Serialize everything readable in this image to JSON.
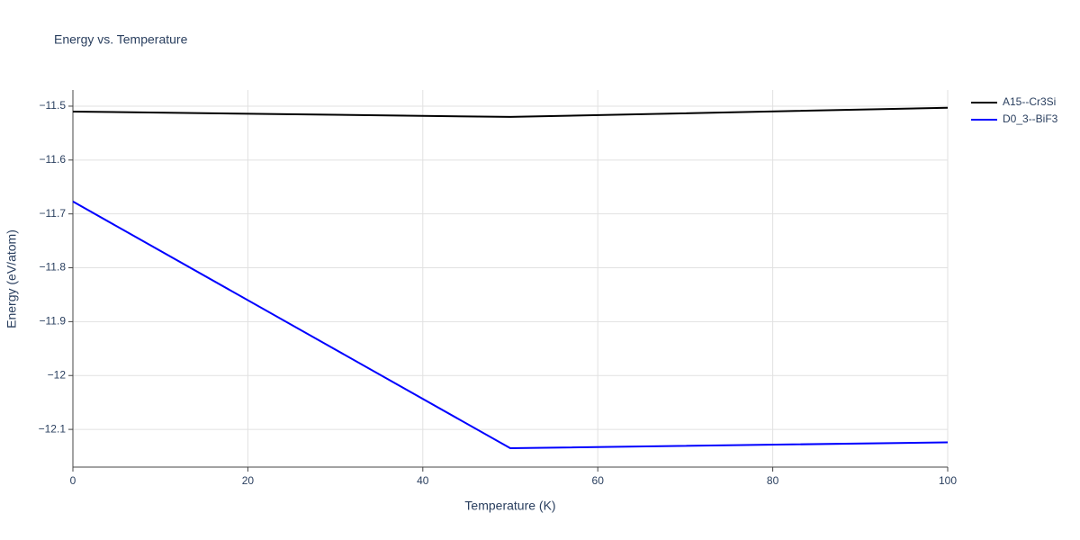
{
  "chart_data": {
    "type": "line",
    "title": "Energy vs. Temperature",
    "x_label": "Temperature (K)",
    "y_label": "Energy (eV/atom)",
    "x": [
      0,
      50,
      100
    ],
    "series": [
      {
        "name": "A15--Cr3Si",
        "color": "#000000",
        "values": [
          -11.51,
          -11.52,
          -11.503
        ]
      },
      {
        "name": "D0_3--BiF3",
        "color": "#0000ff",
        "values": [
          -11.677,
          -12.135,
          -12.124
        ]
      }
    ],
    "xlim": [
      0,
      100
    ],
    "xticks": [
      0,
      20,
      40,
      60,
      80,
      100
    ],
    "ylim": [
      -12.17,
      -11.47
    ],
    "yticks": [
      {
        "value": -12.1,
        "label": "−12.1"
      },
      {
        "value": -12,
        "label": "−12"
      },
      {
        "value": -11.9,
        "label": "−11.9"
      },
      {
        "value": -11.8,
        "label": "−11.8"
      },
      {
        "value": -11.7,
        "label": "−11.7"
      },
      {
        "value": -11.6,
        "label": "−11.6"
      },
      {
        "value": -11.5,
        "label": "−11.5"
      }
    ],
    "grid": true,
    "legend": "right"
  }
}
